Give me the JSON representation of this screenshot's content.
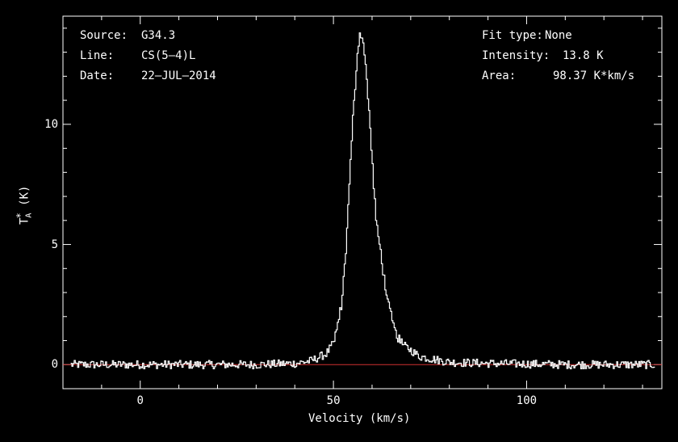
{
  "header": {
    "left": [
      {
        "key": "Source:",
        "value": "G34.3"
      },
      {
        "key": "Line:",
        "value": "CS(5–4)L"
      },
      {
        "key": "Date:",
        "value": "22–JUL–2014"
      }
    ],
    "right": [
      {
        "key": "Fit type:",
        "value": "None"
      },
      {
        "key": "Intensity:",
        "value": "13.8 K"
      },
      {
        "key": "Area:",
        "value": "98.37 K*km/s"
      }
    ]
  },
  "colors": {
    "background": "#000000",
    "foreground": "#ffffff",
    "baseline": "#d03030"
  },
  "chart_data": {
    "type": "line",
    "xlabel": "Velocity (km/s)",
    "ylabel": "T_A^* (K)",
    "ylabel_parts": {
      "main": "T",
      "sub": "A",
      "sup": "*",
      "unit": "(K)"
    },
    "xlim": [
      -20,
      135
    ],
    "ylim": [
      -1,
      14.5
    ],
    "xticks": [
      0,
      50,
      100
    ],
    "xtick_labels": [
      "0",
      "50",
      "100"
    ],
    "yticks": [
      0,
      5,
      10
    ],
    "ytick_labels": [
      "0",
      "5",
      "10"
    ],
    "grid": false,
    "series": [
      {
        "style": "step",
        "x": [
          -18,
          -10,
          0,
          10,
          20,
          30,
          40,
          44,
          46,
          48,
          50,
          52,
          53,
          54,
          55,
          56,
          56.5,
          57,
          57.5,
          58,
          59,
          60,
          61,
          62,
          63,
          64,
          66,
          68,
          70,
          72,
          75,
          80,
          90,
          100,
          110,
          120,
          133
        ],
        "y": [
          0,
          0,
          0,
          0,
          0,
          0,
          0.05,
          0.15,
          0.3,
          0.45,
          0.9,
          2.5,
          4.5,
          7.5,
          10.5,
          12.8,
          13.6,
          13.8,
          13.5,
          12.8,
          10.8,
          8.2,
          5.8,
          4.8,
          3.6,
          2.5,
          1.3,
          0.8,
          0.6,
          0.35,
          0.25,
          0.1,
          0.05,
          0.03,
          0,
          0,
          0
        ]
      },
      {
        "style": "baseline",
        "x": [
          -20,
          135
        ],
        "y": [
          0,
          0
        ]
      }
    ]
  }
}
